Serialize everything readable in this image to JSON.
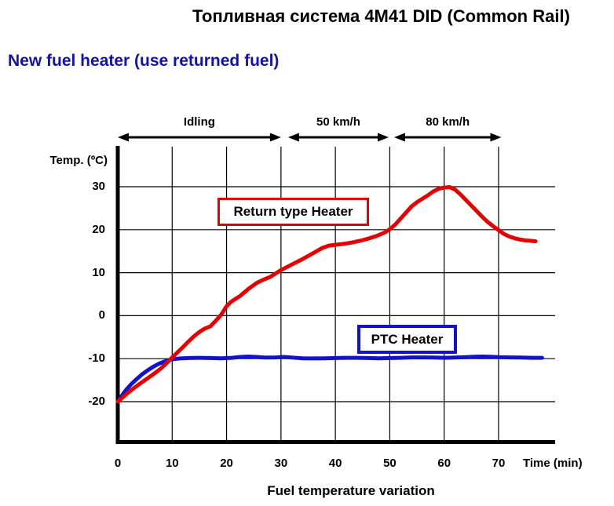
{
  "page": {
    "title": "Топливная система 4M41 DID (Common Rail)",
    "subtitle": "New fuel heater (use returned fuel)",
    "caption": "Fuel temperature variation"
  },
  "colors": {
    "title": "#000000",
    "subtitle": "#1111bb",
    "grid": "#000000",
    "axis": "#000000",
    "return_heater_red": "#e60000",
    "ptc_heater_blue": "#1212cc"
  },
  "chart_data": {
    "type": "line",
    "title": "Fuel temperature variation",
    "xlabel": "Time (min)",
    "ylabel": "Temp. (ºC)",
    "xlim": [
      0,
      80.4
    ],
    "ylim": [
      -30,
      39
    ],
    "x_ticks": [
      0,
      10,
      20,
      30,
      40,
      50,
      60,
      70
    ],
    "y_ticks": [
      30,
      20,
      10,
      0,
      -10,
      -20
    ],
    "grid": true,
    "legend_position": "boxed-annotations-inside-plot",
    "phases": [
      {
        "label": "Idling",
        "from": 0,
        "to": 30
      },
      {
        "label": "50 km/h",
        "from": 31.3,
        "to": 49.8
      },
      {
        "label": "80 km/h",
        "from": 50.8,
        "to": 70.5
      }
    ],
    "series": [
      {
        "name": "Return type Heater",
        "color": "#e60000",
        "points": [
          [
            0,
            -20
          ],
          [
            1,
            -18.9
          ],
          [
            2,
            -17.8
          ],
          [
            3,
            -16.8
          ],
          [
            4,
            -15.9
          ],
          [
            5,
            -15
          ],
          [
            6,
            -14.1
          ],
          [
            7,
            -13.2
          ],
          [
            8,
            -12.2
          ],
          [
            9,
            -11
          ],
          [
            10,
            -9.7
          ],
          [
            11,
            -8.5
          ],
          [
            12,
            -7.3
          ],
          [
            13,
            -6
          ],
          [
            14,
            -4.8
          ],
          [
            15,
            -3.8
          ],
          [
            16,
            -3
          ],
          [
            17,
            -2.5
          ],
          [
            18,
            -1.2
          ],
          [
            19,
            0.2
          ],
          [
            20,
            2.2
          ],
          [
            20.8,
            3.2
          ],
          [
            21.5,
            3.8
          ],
          [
            22.5,
            4.6
          ],
          [
            24,
            6.2
          ],
          [
            25.5,
            7.6
          ],
          [
            26.8,
            8.4
          ],
          [
            28,
            9
          ],
          [
            29,
            9.8
          ],
          [
            30,
            10.6
          ],
          [
            32,
            11.9
          ],
          [
            34,
            13.2
          ],
          [
            36,
            14.6
          ],
          [
            37.5,
            15.7
          ],
          [
            38.8,
            16.3
          ],
          [
            40,
            16.5
          ],
          [
            41.5,
            16.7
          ],
          [
            43,
            17
          ],
          [
            44.5,
            17.4
          ],
          [
            46,
            17.9
          ],
          [
            47.5,
            18.5
          ],
          [
            49,
            19.3
          ],
          [
            50,
            20.1
          ],
          [
            51,
            21.2
          ],
          [
            52,
            22.6
          ],
          [
            53,
            24
          ],
          [
            54,
            25.4
          ],
          [
            55,
            26.4
          ],
          [
            56,
            27.2
          ],
          [
            57,
            28
          ],
          [
            58,
            28.9
          ],
          [
            59,
            29.5
          ],
          [
            60,
            29.8
          ],
          [
            61,
            29.9
          ],
          [
            62,
            29.3
          ],
          [
            63,
            28.2
          ],
          [
            64,
            26.9
          ],
          [
            65,
            25.6
          ],
          [
            66,
            24.3
          ],
          [
            67,
            23
          ],
          [
            68,
            21.8
          ],
          [
            69,
            20.8
          ],
          [
            70,
            19.9
          ],
          [
            71,
            19
          ],
          [
            72,
            18.4
          ],
          [
            73,
            18
          ],
          [
            74,
            17.7
          ],
          [
            75,
            17.5
          ],
          [
            76,
            17.4
          ],
          [
            76.8,
            17.3
          ]
        ]
      },
      {
        "name": "PTC Heater",
        "color": "#1212cc",
        "points": [
          [
            0,
            -20
          ],
          [
            0.7,
            -18.7
          ],
          [
            1.5,
            -17.3
          ],
          [
            2.5,
            -15.9
          ],
          [
            3.5,
            -14.7
          ],
          [
            4.5,
            -13.6
          ],
          [
            5.5,
            -12.7
          ],
          [
            6.5,
            -11.9
          ],
          [
            7.5,
            -11.2
          ],
          [
            8.5,
            -10.7
          ],
          [
            9.5,
            -10.3
          ],
          [
            10.5,
            -10.05
          ],
          [
            11.5,
            -9.95
          ],
          [
            13,
            -9.85
          ],
          [
            15,
            -9.8
          ],
          [
            17,
            -9.85
          ],
          [
            19,
            -9.9
          ],
          [
            21,
            -9.8
          ],
          [
            22.5,
            -9.6
          ],
          [
            24,
            -9.5
          ],
          [
            25.5,
            -9.6
          ],
          [
            27,
            -9.75
          ],
          [
            29,
            -9.7
          ],
          [
            30.5,
            -9.6
          ],
          [
            32,
            -9.75
          ],
          [
            34,
            -9.9
          ],
          [
            36,
            -9.95
          ],
          [
            38,
            -9.9
          ],
          [
            40,
            -9.85
          ],
          [
            42,
            -9.8
          ],
          [
            44,
            -9.8
          ],
          [
            46,
            -9.85
          ],
          [
            48,
            -9.9
          ],
          [
            50,
            -9.85
          ],
          [
            52,
            -9.8
          ],
          [
            54,
            -9.7
          ],
          [
            56,
            -9.7
          ],
          [
            58,
            -9.75
          ],
          [
            60,
            -9.8
          ],
          [
            62,
            -9.75
          ],
          [
            64,
            -9.65
          ],
          [
            65.5,
            -9.55
          ],
          [
            67,
            -9.5
          ],
          [
            68.5,
            -9.55
          ],
          [
            70,
            -9.65
          ],
          [
            72,
            -9.7
          ],
          [
            74,
            -9.75
          ],
          [
            76,
            -9.8
          ],
          [
            78,
            -9.8
          ]
        ]
      }
    ]
  }
}
